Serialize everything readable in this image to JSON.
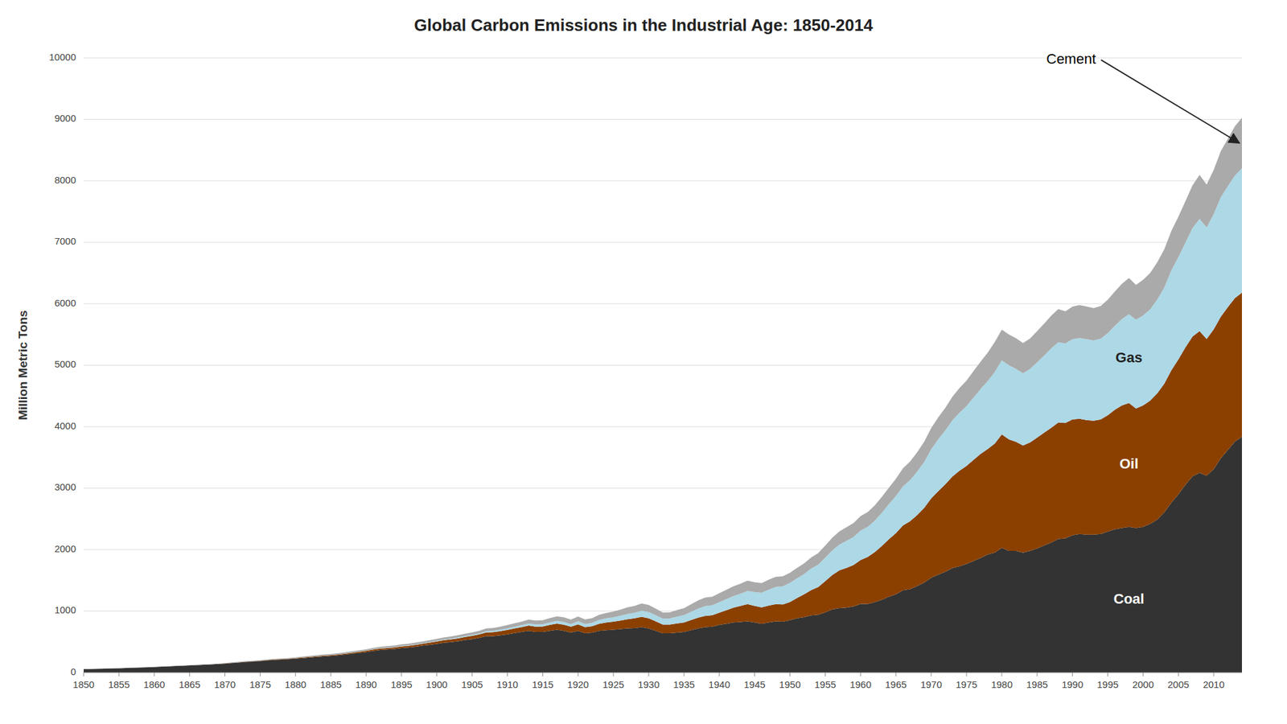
{
  "chart_data": {
    "type": "area",
    "stacked": true,
    "grid": true,
    "title": "Global Carbon Emissions in the Industrial Age: 1850-2014",
    "ylabel": "Million Metric Tons",
    "x": [
      1850,
      1851,
      1852,
      1853,
      1854,
      1855,
      1856,
      1857,
      1858,
      1859,
      1860,
      1861,
      1862,
      1863,
      1864,
      1865,
      1866,
      1867,
      1868,
      1869,
      1870,
      1871,
      1872,
      1873,
      1874,
      1875,
      1876,
      1877,
      1878,
      1879,
      1880,
      1881,
      1882,
      1883,
      1884,
      1885,
      1886,
      1887,
      1888,
      1889,
      1890,
      1891,
      1892,
      1893,
      1894,
      1895,
      1896,
      1897,
      1898,
      1899,
      1900,
      1901,
      1902,
      1903,
      1904,
      1905,
      1906,
      1907,
      1908,
      1909,
      1910,
      1911,
      1912,
      1913,
      1914,
      1915,
      1916,
      1917,
      1918,
      1919,
      1920,
      1921,
      1922,
      1923,
      1924,
      1925,
      1926,
      1927,
      1928,
      1929,
      1930,
      1931,
      1932,
      1933,
      1934,
      1935,
      1936,
      1937,
      1938,
      1939,
      1940,
      1941,
      1942,
      1943,
      1944,
      1945,
      1946,
      1947,
      1948,
      1949,
      1950,
      1951,
      1952,
      1953,
      1954,
      1955,
      1956,
      1957,
      1958,
      1959,
      1960,
      1961,
      1962,
      1963,
      1964,
      1965,
      1966,
      1967,
      1968,
      1969,
      1970,
      1971,
      1972,
      1973,
      1974,
      1975,
      1976,
      1977,
      1978,
      1979,
      1980,
      1981,
      1982,
      1983,
      1984,
      1985,
      1986,
      1987,
      1988,
      1989,
      1990,
      1991,
      1992,
      1993,
      1994,
      1995,
      1996,
      1997,
      1998,
      1999,
      2000,
      2001,
      2002,
      2003,
      2004,
      2005,
      2006,
      2007,
      2008,
      2009,
      2010,
      2011,
      2012,
      2013,
      2014
    ],
    "series": [
      {
        "name": "Coal",
        "color": "#333333",
        "values": [
          54,
          56,
          59,
          62,
          65,
          68,
          72,
          76,
          80,
          85,
          90,
          94,
          99,
          104,
          109,
          114,
          120,
          126,
          132,
          138,
          145,
          154,
          163,
          172,
          178,
          187,
          197,
          205,
          210,
          216,
          224,
          234,
          244,
          254,
          263,
          270,
          280,
          292,
          307,
          320,
          333,
          352,
          366,
          374,
          382,
          397,
          407,
          420,
          436,
          451,
          466,
          484,
          494,
          509,
          528,
          543,
          562,
          591,
          591,
          606,
          621,
          641,
          659,
          679,
          659,
          659,
          679,
          697,
          678,
          650,
          679,
          639,
          649,
          679,
          688,
          697,
          706,
          717,
          722,
          737,
          717,
          678,
          639,
          639,
          649,
          659,
          688,
          717,
          737,
          746,
          775,
          794,
          814,
          823,
          833,
          814,
          794,
          814,
          833,
          828,
          852,
          882,
          901,
          930,
          940,
          978,
          1027,
          1046,
          1056,
          1075,
          1114,
          1114,
          1143,
          1182,
          1232,
          1271,
          1338,
          1357,
          1406,
          1464,
          1542,
          1591,
          1639,
          1698,
          1727,
          1766,
          1815,
          1863,
          1921,
          1951,
          2029,
          1979,
          1979,
          1950,
          1979,
          2018,
          2067,
          2116,
          2174,
          2184,
          2233,
          2253,
          2243,
          2243,
          2253,
          2292,
          2331,
          2351,
          2370,
          2351,
          2370,
          2419,
          2487,
          2605,
          2762,
          2899,
          3055,
          3191,
          3250,
          3201,
          3308,
          3484,
          3620,
          3757,
          3835
        ]
      },
      {
        "name": "Oil",
        "color": "#8B4000",
        "values": [
          0,
          0,
          0,
          0,
          0,
          0,
          0,
          0,
          0,
          0,
          0,
          0,
          0,
          0,
          0,
          0,
          0,
          0,
          0,
          0,
          2,
          3,
          3,
          4,
          4,
          5,
          5,
          6,
          6,
          7,
          8,
          9,
          10,
          11,
          12,
          13,
          14,
          15,
          16,
          18,
          20,
          22,
          24,
          25,
          26,
          27,
          28,
          30,
          32,
          35,
          38,
          41,
          44,
          47,
          50,
          54,
          58,
          62,
          65,
          68,
          72,
          76,
          80,
          86,
          88,
          90,
          95,
          100,
          100,
          95,
          105,
          100,
          105,
          115,
          125,
          130,
          140,
          150,
          160,
          170,
          165,
          155,
          140,
          140,
          150,
          155,
          165,
          175,
          185,
          185,
          200,
          220,
          240,
          260,
          280,
          270,
          265,
          275,
          280,
          280,
          295,
          330,
          370,
          410,
          450,
          510,
          560,
          615,
          645,
          675,
          715,
          765,
          815,
          875,
          935,
          995,
          1055,
          1105,
          1155,
          1215,
          1290,
          1360,
          1425,
          1490,
          1555,
          1595,
          1645,
          1695,
          1715,
          1775,
          1845,
          1815,
          1775,
          1745,
          1765,
          1805,
          1835,
          1865,
          1895,
          1875,
          1885,
          1875,
          1865,
          1855,
          1865,
          1895,
          1945,
          1995,
          2015,
          1945,
          1975,
          2005,
          2055,
          2095,
          2155,
          2195,
          2235,
          2275,
          2305,
          2225,
          2275,
          2305,
          2325,
          2335,
          2345
        ]
      },
      {
        "name": "Gas",
        "color": "#ADD8E6",
        "values": [
          0,
          0,
          0,
          0,
          0,
          0,
          0,
          0,
          0,
          0,
          0,
          0,
          0,
          0,
          0,
          0,
          0,
          0,
          0,
          0,
          0,
          0,
          0,
          0,
          0,
          0,
          0,
          0,
          0,
          0,
          1,
          1,
          1,
          2,
          2,
          2,
          3,
          3,
          3,
          4,
          4,
          5,
          5,
          6,
          6,
          7,
          7,
          8,
          9,
          10,
          11,
          12,
          13,
          14,
          15,
          16,
          17,
          19,
          21,
          23,
          25,
          27,
          30,
          33,
          35,
          37,
          40,
          43,
          44,
          44,
          50,
          50,
          55,
          62,
          68,
          72,
          78,
          85,
          90,
          97,
          102,
          100,
          98,
          100,
          110,
          120,
          135,
          148,
          158,
          162,
          170,
          180,
          190,
          200,
          215,
          225,
          240,
          260,
          280,
          295,
          310,
          320,
          330,
          350,
          365,
          380,
          400,
          420,
          440,
          455,
          480,
          490,
          510,
          540,
          570,
          605,
          635,
          665,
          705,
          745,
          800,
          845,
          875,
          915,
          945,
          975,
          1015,
          1055,
          1105,
          1165,
          1205,
          1205,
          1185,
          1175,
          1195,
          1225,
          1255,
          1295,
          1305,
          1295,
          1305,
          1315,
          1315,
          1305,
          1315,
          1335,
          1365,
          1405,
          1445,
          1445,
          1465,
          1485,
          1525,
          1565,
          1625,
          1665,
          1705,
          1765,
          1825,
          1815,
          1875,
          1945,
          1965,
          1995,
          2025
        ]
      },
      {
        "name": "Cement",
        "color": "#AAAAAA",
        "values": [
          3,
          3,
          3,
          3,
          3,
          4,
          4,
          4,
          4,
          4,
          5,
          5,
          5,
          5,
          6,
          6,
          6,
          7,
          7,
          7,
          8,
          8,
          9,
          9,
          10,
          10,
          11,
          11,
          12,
          12,
          13,
          14,
          14,
          15,
          16,
          16,
          17,
          18,
          19,
          20,
          21,
          22,
          23,
          24,
          25,
          26,
          27,
          28,
          29,
          30,
          32,
          33,
          35,
          37,
          38,
          40,
          42,
          45,
          47,
          50,
          53,
          56,
          59,
          63,
          64,
          66,
          70,
          74,
          75,
          72,
          77,
          74,
          77,
          83,
          88,
          93,
          100,
          108,
          112,
          120,
          116,
          107,
          99,
          100,
          107,
          112,
          122,
          133,
          140,
          140,
          145,
          152,
          158,
          162,
          166,
          160,
          157,
          162,
          165,
          162,
          165,
          170,
          175,
          183,
          188,
          197,
          208,
          215,
          222,
          228,
          236,
          242,
          249,
          258,
          269,
          280,
          293,
          304,
          316,
          329,
          345,
          355,
          368,
          384,
          400,
          413,
          430,
          445,
          464,
          485,
          500,
          502,
          500,
          490,
          495,
          508,
          520,
          530,
          540,
          524,
          530,
          535,
          533,
          527,
          530,
          543,
          558,
          573,
          590,
          565,
          580,
          592,
          606,
          621,
          640,
          656,
          674,
          695,
          718,
          698,
          720,
          748,
          772,
          800,
          820
        ]
      }
    ],
    "xlim": [
      1850,
      2014
    ],
    "ylim": [
      0,
      10000
    ],
    "yticks": [
      0,
      1000,
      2000,
      3000,
      4000,
      5000,
      6000,
      7000,
      8000,
      9000,
      10000
    ],
    "xticks": [
      1850,
      1855,
      1860,
      1865,
      1870,
      1875,
      1880,
      1885,
      1890,
      1895,
      1900,
      1905,
      1910,
      1915,
      1920,
      1925,
      1930,
      1935,
      1940,
      1945,
      1950,
      1955,
      1960,
      1965,
      1970,
      1975,
      1980,
      1985,
      1990,
      1995,
      2000,
      2005,
      2010
    ]
  }
}
